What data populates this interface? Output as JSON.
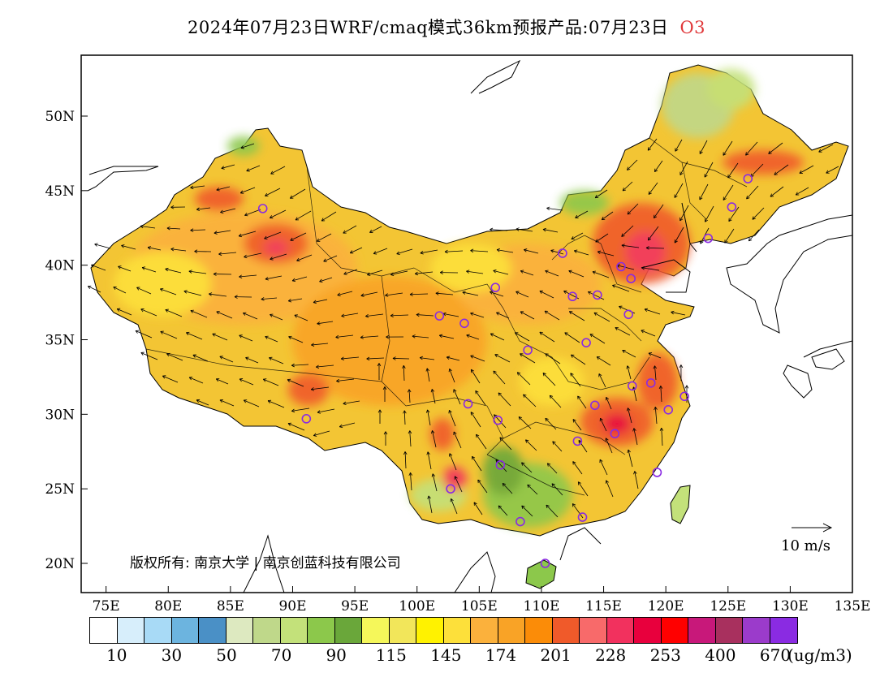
{
  "title": {
    "text": "2024年07月23日WRF/cmaq模式36km预报产品:07月23日",
    "species": "O3"
  },
  "map": {
    "lat_labels": [
      "50N",
      "45N",
      "40N",
      "35N",
      "30N",
      "25N",
      "20N"
    ],
    "lon_labels": [
      "75E",
      "80E",
      "85E",
      "90E",
      "95E",
      "100E",
      "105E",
      "110E",
      "115E",
      "120E",
      "125E",
      "130E",
      "135E"
    ]
  },
  "copyright": "版权所有: 南京大学 | 南京创蓝科技有限公司",
  "wind_reference": "10 m/s",
  "legend": {
    "colors": [
      "#ffffff",
      "#d7eefb",
      "#a8daf6",
      "#6cb4df",
      "#4a90c6",
      "#dde9c0",
      "#bfd88a",
      "#c3e17a",
      "#8cc84b",
      "#6aa73a",
      "#f5f75a",
      "#f2e65a",
      "#fff200",
      "#fde03a",
      "#fbb13c",
      "#f9a326",
      "#fb8c08",
      "#f05a2a",
      "#f86a6a",
      "#f2315e",
      "#e8003d",
      "#ff0000",
      "#c8187a",
      "#a8305e",
      "#9b3bcb",
      "#8a2be2"
    ],
    "labels": [
      "10",
      "30",
      "50",
      "70",
      "90",
      "115",
      "145",
      "174",
      "201",
      "228",
      "253",
      "400",
      "670"
    ],
    "unit": "(ug/m3)"
  },
  "cities": [
    {
      "lon": 87.6,
      "lat": 43.8
    },
    {
      "lon": 91.1,
      "lat": 29.7
    },
    {
      "lon": 101.8,
      "lat": 36.6
    },
    {
      "lon": 103.8,
      "lat": 36.1
    },
    {
      "lon": 106.3,
      "lat": 38.5
    },
    {
      "lon": 111.7,
      "lat": 40.8
    },
    {
      "lon": 112.5,
      "lat": 37.9
    },
    {
      "lon": 114.5,
      "lat": 38.0
    },
    {
      "lon": 116.4,
      "lat": 39.9
    },
    {
      "lon": 117.2,
      "lat": 39.1
    },
    {
      "lon": 117.0,
      "lat": 36.7
    },
    {
      "lon": 113.6,
      "lat": 34.8
    },
    {
      "lon": 108.9,
      "lat": 34.3
    },
    {
      "lon": 104.1,
      "lat": 30.7
    },
    {
      "lon": 106.5,
      "lat": 29.6
    },
    {
      "lon": 106.7,
      "lat": 26.6
    },
    {
      "lon": 102.7,
      "lat": 25.0
    },
    {
      "lon": 108.3,
      "lat": 22.8
    },
    {
      "lon": 113.3,
      "lat": 23.1
    },
    {
      "lon": 110.3,
      "lat": 20.0
    },
    {
      "lon": 112.9,
      "lat": 28.2
    },
    {
      "lon": 114.3,
      "lat": 30.6
    },
    {
      "lon": 115.9,
      "lat": 28.7
    },
    {
      "lon": 117.3,
      "lat": 31.9
    },
    {
      "lon": 118.8,
      "lat": 32.1
    },
    {
      "lon": 120.2,
      "lat": 30.3
    },
    {
      "lon": 121.5,
      "lat": 31.2
    },
    {
      "lon": 119.3,
      "lat": 26.1
    },
    {
      "lon": 123.4,
      "lat": 41.8
    },
    {
      "lon": 125.3,
      "lat": 43.9
    },
    {
      "lon": 126.6,
      "lat": 45.8
    }
  ]
}
